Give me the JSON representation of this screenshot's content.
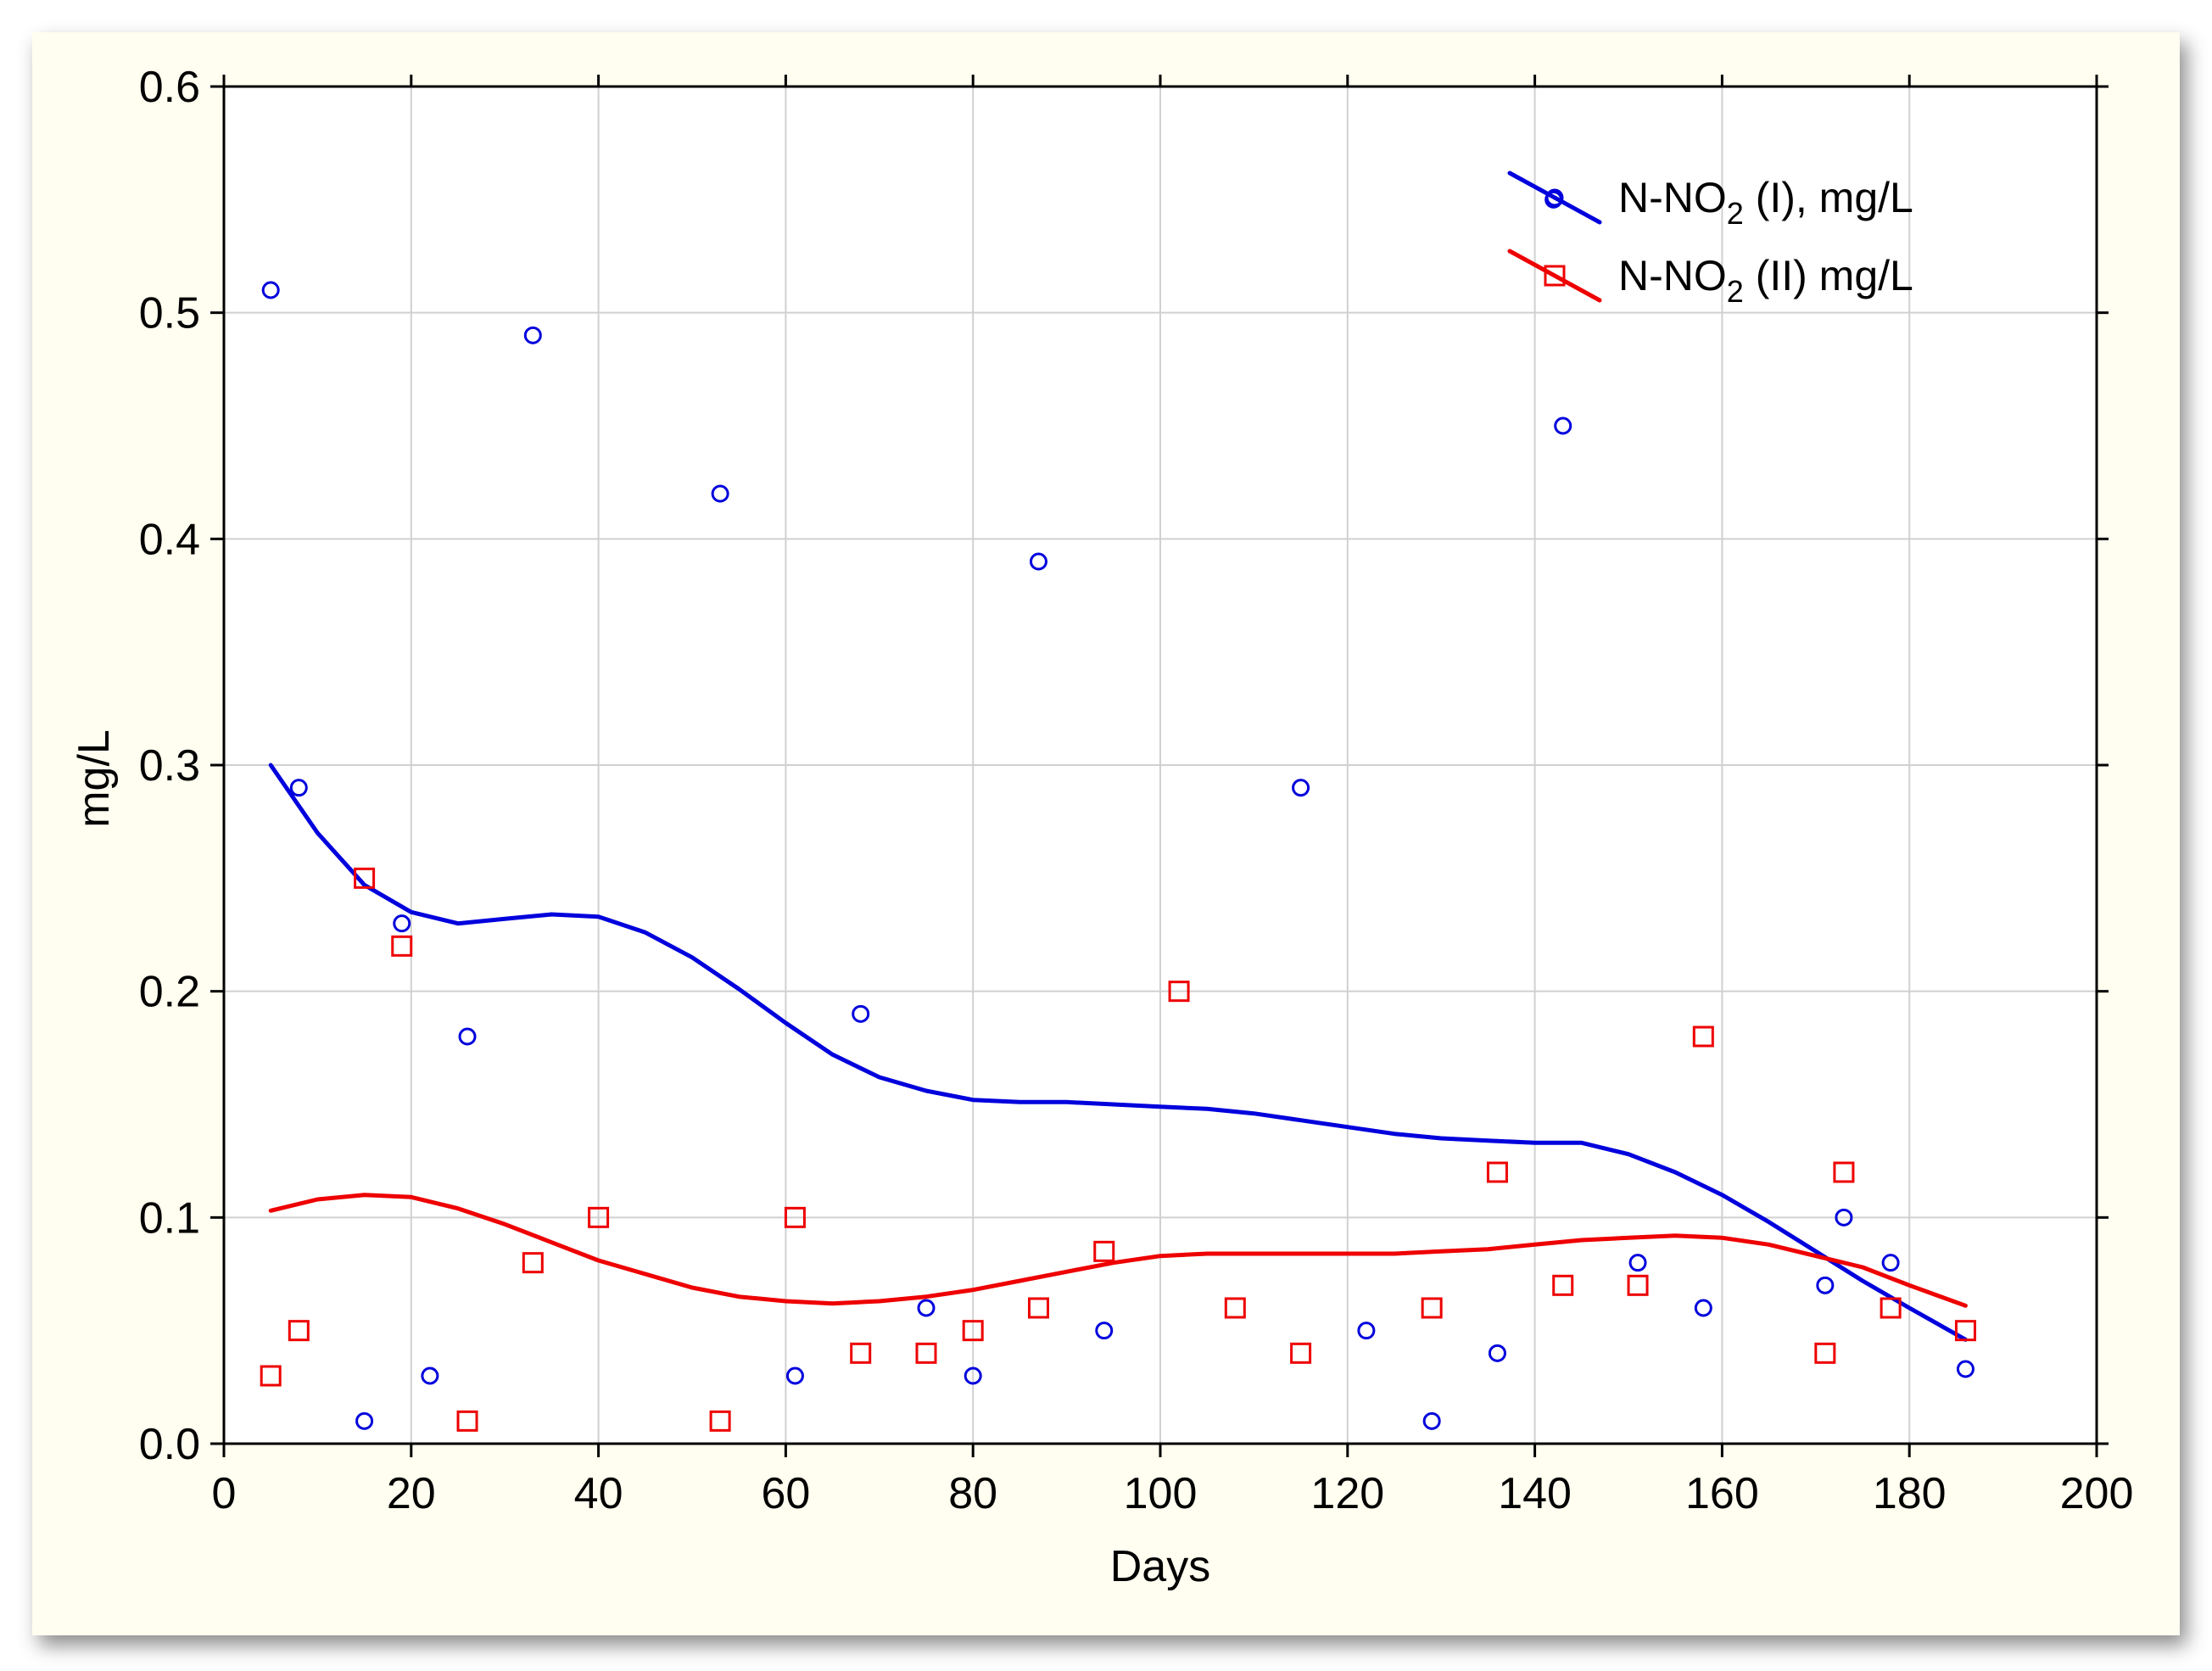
{
  "chart_data": {
    "type": "scatter",
    "xlabel": "Days",
    "ylabel": "mg/L",
    "xlim": [
      0,
      200
    ],
    "ylim": [
      0.0,
      0.6
    ],
    "x_ticks": [
      0,
      20,
      40,
      60,
      80,
      100,
      120,
      140,
      160,
      180,
      200
    ],
    "y_ticks": [
      0.0,
      0.1,
      0.2,
      0.3,
      0.4,
      0.5,
      0.6
    ],
    "x_tick_labels": [
      "0",
      "20",
      "40",
      "60",
      "80",
      "100",
      "120",
      "140",
      "160",
      "180",
      "200"
    ],
    "y_tick_labels": [
      "0.0",
      "0.1",
      "0.2",
      "0.3",
      "0.4",
      "0.5",
      "0.6"
    ],
    "grid": true,
    "legend_position": "top-right",
    "series": [
      {
        "name": "N-NO2 (I), mg/L",
        "label_base": "N-NO",
        "label_sub": "2",
        "label_rest": " (I), mg/L",
        "color": "#0000dd",
        "marker": "circle",
        "x": [
          5,
          8,
          15,
          19,
          22,
          26,
          33,
          53,
          61,
          68,
          75,
          80,
          87,
          94,
          115,
          122,
          129,
          136,
          142,
          143,
          151,
          158,
          171,
          173,
          178,
          186
        ],
        "y": [
          0.51,
          0.29,
          0.01,
          0.23,
          0.03,
          0.18,
          0.49,
          0.42,
          0.03,
          0.19,
          0.06,
          0.03,
          0.39,
          0.05,
          0.29,
          0.05,
          0.01,
          0.04,
          0.55,
          0.45,
          0.08,
          0.06,
          0.07,
          0.1,
          0.08,
          0.033
        ],
        "fit_x": [
          5,
          10,
          15,
          20,
          25,
          30,
          35,
          40,
          45,
          50,
          55,
          60,
          65,
          70,
          75,
          80,
          85,
          90,
          95,
          100,
          105,
          110,
          115,
          120,
          125,
          130,
          135,
          140,
          145,
          150,
          155,
          160,
          165,
          170,
          175,
          180,
          186
        ],
        "fit_y": [
          0.3,
          0.27,
          0.247,
          0.235,
          0.23,
          0.232,
          0.234,
          0.233,
          0.226,
          0.215,
          0.201,
          0.186,
          0.172,
          0.162,
          0.156,
          0.152,
          0.151,
          0.151,
          0.15,
          0.149,
          0.148,
          0.146,
          0.143,
          0.14,
          0.137,
          0.135,
          0.134,
          0.133,
          0.133,
          0.128,
          0.12,
          0.11,
          0.098,
          0.085,
          0.072,
          0.06,
          0.046
        ]
      },
      {
        "name": "N-NO2 (II) mg/L",
        "label_base": "N-NO",
        "label_sub": "2",
        "label_rest": " (II) mg/L",
        "color": "#ee0000",
        "marker": "square",
        "x": [
          5,
          8,
          15,
          19,
          26,
          33,
          40,
          53,
          61,
          68,
          75,
          80,
          87,
          94,
          102,
          108,
          115,
          129,
          136,
          143,
          151,
          158,
          171,
          173,
          178,
          186
        ],
        "y": [
          0.03,
          0.05,
          0.25,
          0.22,
          0.01,
          0.08,
          0.1,
          0.01,
          0.1,
          0.04,
          0.04,
          0.05,
          0.06,
          0.085,
          0.2,
          0.06,
          0.04,
          0.06,
          0.12,
          0.07,
          0.07,
          0.18,
          0.04,
          0.12,
          0.06,
          0.05
        ],
        "fit_x": [
          5,
          10,
          15,
          20,
          25,
          30,
          35,
          40,
          45,
          50,
          55,
          60,
          65,
          70,
          75,
          80,
          85,
          90,
          95,
          100,
          105,
          110,
          115,
          120,
          125,
          130,
          135,
          140,
          145,
          150,
          155,
          160,
          165,
          170,
          175,
          180,
          186
        ],
        "fit_y": [
          0.103,
          0.108,
          0.11,
          0.109,
          0.104,
          0.097,
          0.089,
          0.081,
          0.075,
          0.069,
          0.065,
          0.063,
          0.062,
          0.063,
          0.065,
          0.068,
          0.072,
          0.076,
          0.08,
          0.083,
          0.084,
          0.084,
          0.084,
          0.084,
          0.084,
          0.085,
          0.086,
          0.088,
          0.09,
          0.091,
          0.092,
          0.091,
          0.088,
          0.083,
          0.078,
          0.07,
          0.061
        ]
      }
    ]
  }
}
